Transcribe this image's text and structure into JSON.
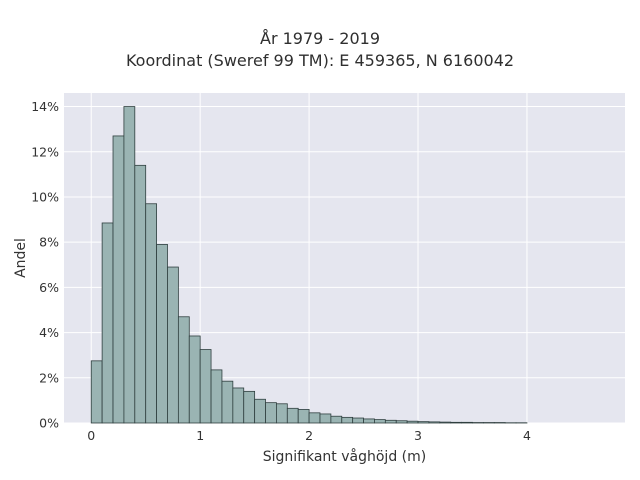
{
  "chart_data": {
    "type": "bar",
    "title_line1": "År 1979 - 2019",
    "title_line2": "Koordinat (Sweref 99 TM): E 459365, N 6160042",
    "xlabel": "Signifikant våghöjd (m)",
    "ylabel": "Andel",
    "xlim": [
      -0.25,
      4.9
    ],
    "ylim": [
      0,
      14.6
    ],
    "xticks": [
      0,
      1,
      2,
      3,
      4
    ],
    "xtick_labels": [
      "0",
      "1",
      "2",
      "3",
      "4"
    ],
    "yticks": [
      0,
      2,
      4,
      6,
      8,
      10,
      12,
      14
    ],
    "ytick_labels": [
      "0%",
      "2%",
      "4%",
      "6%",
      "8%",
      "10%",
      "12%",
      "14%"
    ],
    "bin_start": 0,
    "bin_width": 0.1,
    "values": [
      2.75,
      8.85,
      12.7,
      14.0,
      11.4,
      9.7,
      7.9,
      6.9,
      4.7,
      3.85,
      3.25,
      2.35,
      1.85,
      1.55,
      1.4,
      1.05,
      0.9,
      0.85,
      0.65,
      0.6,
      0.45,
      0.4,
      0.3,
      0.25,
      0.22,
      0.18,
      0.15,
      0.12,
      0.1,
      0.08,
      0.06,
      0.05,
      0.04,
      0.03,
      0.03,
      0.02,
      0.02,
      0.02,
      0.01,
      0.01
    ],
    "bar_color": "#9ab4b3",
    "bar_edge_color": "#2f3f3f",
    "plot_bg": "#e5e6ef",
    "grid": true
  }
}
